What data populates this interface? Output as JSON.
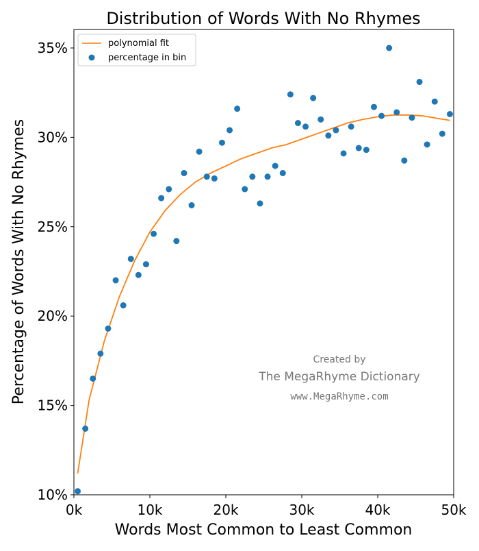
{
  "chart_data": {
    "type": "scatter",
    "title": "Distribution of Words With No Rhymes",
    "xlabel": "Words Most Common to Least Common",
    "ylabel": "Percentage of Words With No Rhymes",
    "xlim": [
      0,
      50000
    ],
    "ylim": [
      10,
      36.3
    ],
    "x_ticks": [
      {
        "value": 0,
        "label": "0k"
      },
      {
        "value": 10000,
        "label": "10k"
      },
      {
        "value": 20000,
        "label": "20k"
      },
      {
        "value": 30000,
        "label": "30k"
      },
      {
        "value": 40000,
        "label": "40k"
      },
      {
        "value": 50000,
        "label": "50k"
      }
    ],
    "y_ticks": [
      {
        "value": 10,
        "label": "10%"
      },
      {
        "value": 15,
        "label": "15%"
      },
      {
        "value": 20,
        "label": "20%"
      },
      {
        "value": 25,
        "label": "25%"
      },
      {
        "value": 30,
        "label": "30%"
      },
      {
        "value": 35,
        "label": "35%"
      }
    ],
    "grid": false,
    "legend_position": "top-left",
    "series": [
      {
        "name": "polynomial fit",
        "kind": "line",
        "color": "#ff7f0e",
        "x": [
          500,
          2000,
          4000,
          6000,
          8000,
          10000,
          12000,
          14000,
          16000,
          18000,
          20000,
          22000,
          24000,
          26000,
          28000,
          30000,
          32000,
          34000,
          36000,
          38000,
          40000,
          42000,
          44000,
          46000,
          48000,
          49500
        ],
        "y": [
          11.2,
          15.3,
          18.6,
          21.1,
          23.1,
          24.7,
          25.9,
          26.8,
          27.5,
          28.0,
          28.4,
          28.8,
          29.1,
          29.4,
          29.6,
          29.9,
          30.2,
          30.5,
          30.8,
          31.0,
          31.15,
          31.25,
          31.25,
          31.2,
          31.05,
          30.95
        ]
      },
      {
        "name": "percentage in bin",
        "kind": "scatter",
        "color": "#1f77b4",
        "x": [
          500,
          1500,
          2500,
          3500,
          4500,
          5500,
          6500,
          7500,
          8500,
          9500,
          10500,
          11500,
          12500,
          13500,
          14500,
          15500,
          16500,
          17500,
          18500,
          19500,
          20500,
          21500,
          22500,
          23500,
          24500,
          25500,
          26500,
          27500,
          28500,
          29500,
          30500,
          31500,
          32500,
          33500,
          34500,
          35500,
          36500,
          37500,
          38500,
          39500,
          40500,
          41500,
          42500,
          43500,
          44500,
          45500,
          46500,
          47500,
          48500,
          49500
        ],
        "y": [
          10.2,
          13.7,
          16.5,
          17.9,
          19.3,
          22.0,
          20.6,
          23.2,
          22.3,
          22.9,
          24.6,
          26.6,
          27.1,
          24.2,
          28.0,
          26.2,
          29.2,
          27.8,
          27.7,
          29.7,
          30.4,
          31.6,
          27.1,
          27.8,
          26.3,
          27.8,
          28.4,
          28.0,
          32.4,
          30.8,
          30.6,
          32.2,
          31.0,
          30.1,
          30.4,
          29.1,
          30.6,
          29.4,
          29.3,
          31.7,
          31.2,
          35.0,
          31.4,
          28.7,
          31.1,
          33.1,
          29.6,
          32.0,
          30.2,
          31.3
        ]
      }
    ],
    "annotations": [
      "Created by",
      "The MegaRhyme Dictionary",
      "www.MegaRhyme.com"
    ]
  }
}
